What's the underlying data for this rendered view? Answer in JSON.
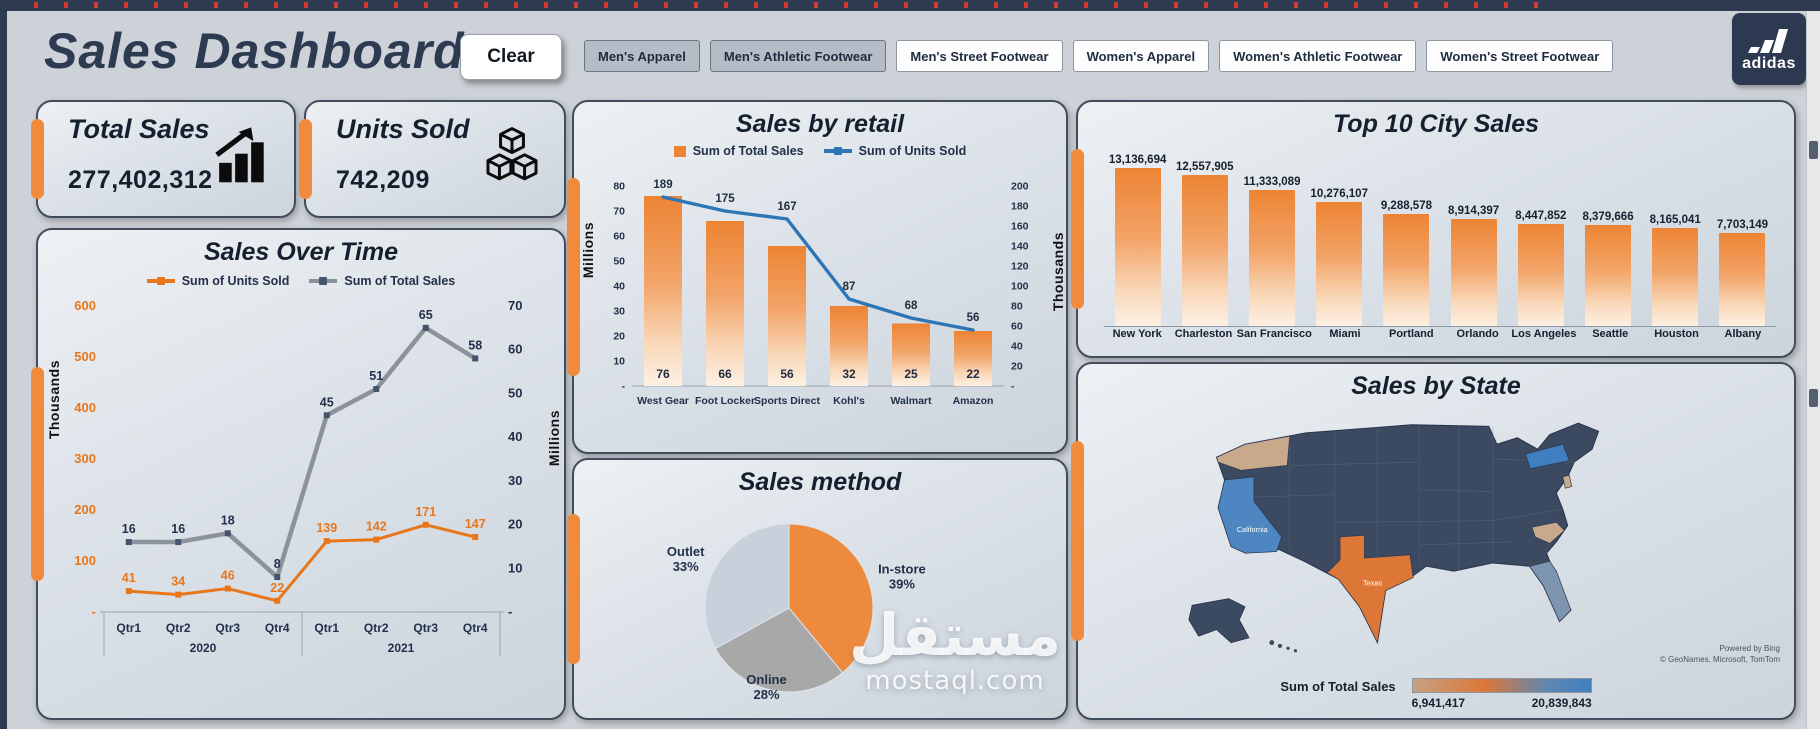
{
  "header": {
    "title": "Sales Dashboard",
    "clear_button": "Clear",
    "slicers": [
      {
        "label": "Men's Apparel",
        "selected": true
      },
      {
        "label": "Men's Athletic Footwear",
        "selected": true
      },
      {
        "label": "Men's Street Footwear",
        "selected": false
      },
      {
        "label": "Women's Apparel",
        "selected": false
      },
      {
        "label": "Women's Athletic Footwear",
        "selected": false
      },
      {
        "label": "Women's Street Footwear",
        "selected": false
      }
    ],
    "logo_text": "adidas"
  },
  "kpis": {
    "total_sales": {
      "title": "Total Sales",
      "value": "277,402,312"
    },
    "units_sold": {
      "title": "Units Sold",
      "value": "742,209"
    }
  },
  "chart_data": [
    {
      "type": "line",
      "title": "Sales Over Time",
      "categories": [
        "Qtr1",
        "Qtr2",
        "Qtr3",
        "Qtr4",
        "Qtr1",
        "Qtr2",
        "Qtr3",
        "Qtr4"
      ],
      "year_groups": [
        "2020",
        "2021"
      ],
      "series": [
        {
          "name": "Sum of Units Sold",
          "axis": "left",
          "color": "#E8761B",
          "values": [
            41,
            34,
            46,
            22,
            139,
            142,
            171,
            147
          ]
        },
        {
          "name": "Sum of Total Sales",
          "axis": "right",
          "color": "#8C929C",
          "values": [
            16,
            16,
            18,
            8,
            45,
            51,
            65,
            58
          ]
        }
      ],
      "left_axis": {
        "title": "Thousands",
        "max": 600,
        "step": 100,
        "unit_labels": [
          "600",
          "500",
          "400",
          "300",
          "200",
          "100",
          "-"
        ]
      },
      "right_axis": {
        "title": "Millions",
        "max": 70,
        "step": 10,
        "unit_labels": [
          "70",
          "60",
          "50",
          "40",
          "30",
          "20",
          "10",
          "-"
        ]
      }
    },
    {
      "type": "combo",
      "title": "Sales by retail",
      "categories": [
        "West Gear",
        "Foot Locker",
        "Sports Direct",
        "Kohl's",
        "Walmart",
        "Amazon"
      ],
      "bars": {
        "name": "Sum of Total Sales",
        "color": "#ED8434",
        "values": [
          76,
          66,
          56,
          32,
          25,
          22
        ],
        "axis": {
          "title": "Millions",
          "max": 80,
          "labels": [
            "80",
            "70",
            "60",
            "50",
            "40",
            "30",
            "20",
            "10",
            "-"
          ]
        }
      },
      "line": {
        "name": "Sum of Units Sold",
        "color": "#2E75B6",
        "values": [
          189,
          175,
          167,
          87,
          68,
          56
        ],
        "axis": {
          "title": "Thousands",
          "max": 200,
          "labels": [
            "200",
            "180",
            "160",
            "140",
            "120",
            "100",
            "80",
            "60",
            "40",
            "20",
            "-"
          ]
        }
      }
    },
    {
      "type": "pie",
      "title": "Sales method",
      "slices": [
        {
          "label": "In-store",
          "pct": 39,
          "color": "#EE8A3E"
        },
        {
          "label": "Online",
          "pct": 28,
          "color": "#A8A8A8"
        },
        {
          "label": "Outlet",
          "pct": 33,
          "color": "#C8D1DB"
        }
      ]
    },
    {
      "type": "bar",
      "title": "Top 10 City Sales",
      "categories": [
        "New York",
        "Charleston",
        "San Francisco",
        "Miami",
        "Portland",
        "Orlando",
        "Los Angeles",
        "Seattle",
        "Houston",
        "Albany"
      ],
      "values": [
        13136694,
        12557905,
        11333089,
        10276107,
        9288578,
        8914397,
        8447852,
        8379666,
        8165041,
        7703149
      ],
      "value_labels": [
        "13,136,694",
        "12,557,905",
        "11,333,089",
        "10,276,107",
        "9,288,578",
        "8,914,397",
        "8,447,852",
        "8,379,666",
        "8,165,041",
        "7,703,149"
      ]
    }
  ],
  "map": {
    "title": "Sales by State",
    "legend_label": "Sum of Total Sales",
    "legend_min": "6,941,417",
    "legend_max": "20,839,843",
    "attribution": [
      "Powered by Bing",
      "© GeoNames, Microsoft, TomTom"
    ],
    "colors": {
      "base": "#3C4A61",
      "california": "#4E86C2",
      "texas": "#DD7738",
      "new_york": "#3F7FBF",
      "florida": "#7E95AF",
      "tan": "#C8A98C"
    },
    "state_labels": [
      {
        "name": "California"
      },
      {
        "name": "Texas"
      }
    ]
  },
  "watermark": {
    "line1": "مستقل",
    "line2": "mostaql.com"
  }
}
